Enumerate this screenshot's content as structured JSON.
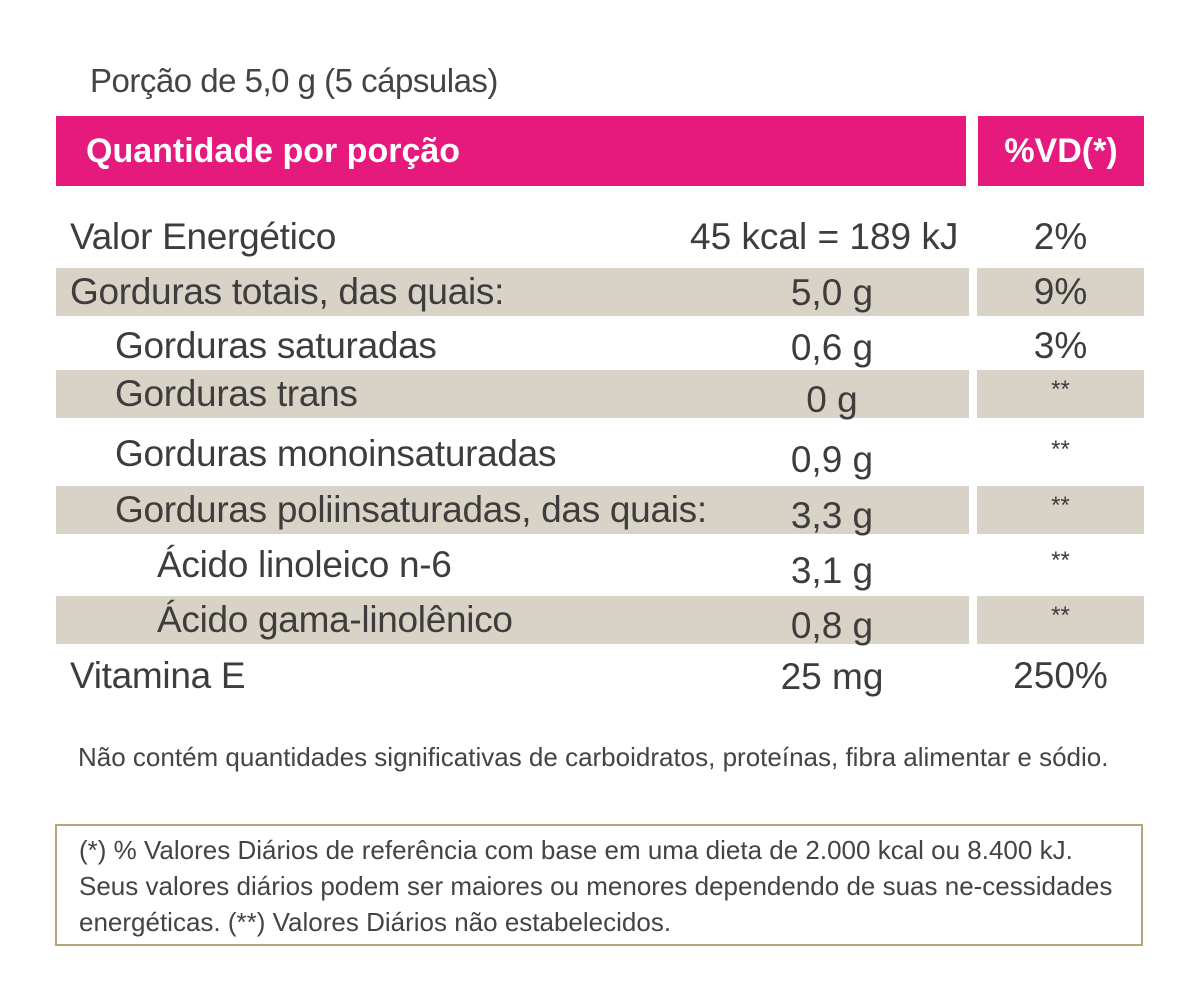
{
  "serving": "Porção de 5,0 g (5 cápsulas)",
  "header": {
    "amount_label": "Quantidade por porção",
    "vd_label": "%VD(*)"
  },
  "rows": [
    {
      "name": "Valor Energético",
      "amount": "45 kcal = 189 kJ",
      "vd": "2%"
    },
    {
      "name": "Gorduras totais, das quais:",
      "amount": "5,0 g",
      "vd": "9%"
    },
    {
      "name": "Gorduras saturadas",
      "amount": "0,6 g",
      "vd": "3%"
    },
    {
      "name": "Gorduras trans",
      "amount": "0 g",
      "vd": "**"
    },
    {
      "name": "Gorduras monoinsaturadas",
      "amount": "0,9 g",
      "vd": "**"
    },
    {
      "name": "Gorduras poliinsaturadas, das quais:",
      "amount": "3,3 g",
      "vd": "**"
    },
    {
      "name": "Ácido linoleico n-6",
      "amount": "3,1 g",
      "vd": "**"
    },
    {
      "name": "Ácido gama-linolênico",
      "amount": "0,8 g",
      "vd": "**"
    },
    {
      "name": "Vitamina E",
      "amount": "25 mg",
      "vd": "250%"
    }
  ],
  "note": "Não contém quantidades significativas de carboidratos, proteínas, fibra alimentar e sódio.",
  "footnote": "(*) % Valores Diários de referência com base em uma dieta de 2.000 kcal ou 8.400 kJ. Seus valores diários podem ser maiores ou menores dependendo de suas ne-cessidades energéticas. (**) Valores Diários não estabelecidos.",
  "colors": {
    "header_bg": "#e6197c",
    "row_shade": "#d8d2c7",
    "box_border": "#b9a47a"
  }
}
